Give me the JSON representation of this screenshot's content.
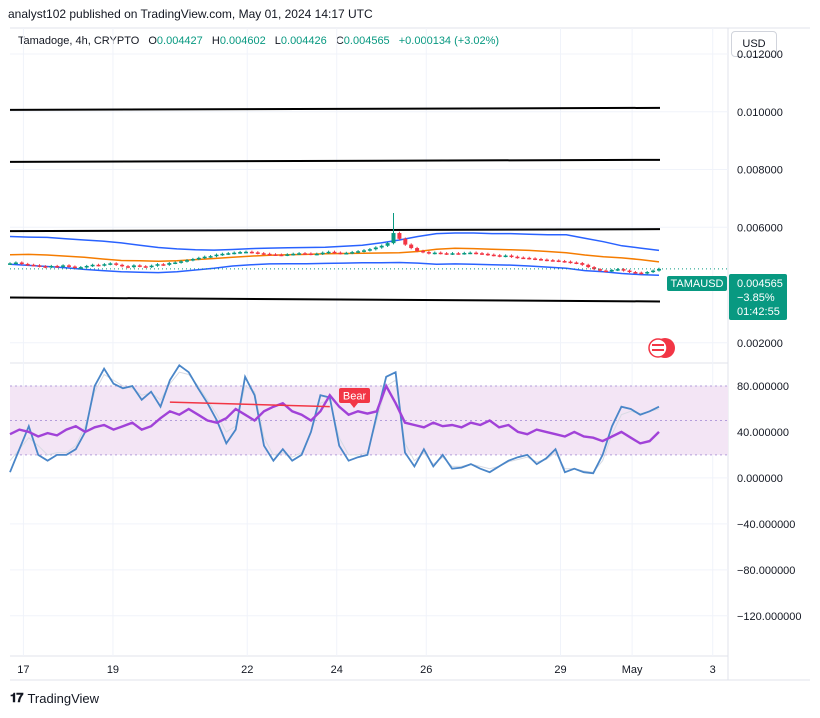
{
  "publisher_line": "analyst102 published on TradingView.com, May 01, 2024 14:17 UTC",
  "legend": {
    "symbol": "Tamadoge, 4h, CRYPTO",
    "open_label": "O",
    "open": "0.004427",
    "high_label": "H",
    "high": "0.004602",
    "low_label": "L",
    "low": "0.004426",
    "close_label": "C",
    "close": "0.004565",
    "change": "+0.000134 (+3.02%)"
  },
  "currency_button": "USD",
  "price_tag": {
    "ticker": "TAMAUSD",
    "price": "0.004565",
    "change_pct": "−3.85%",
    "countdown": "01:42:55"
  },
  "bear_label": "Bear",
  "footer_brand": "TradingView",
  "colors": {
    "up": "#089981",
    "down": "#f23645",
    "bb_band": "#2962ff",
    "bb_basis": "#f57c00",
    "stoch": "#4a86c8",
    "rsi": "#a142d8",
    "rsi_band": "#f3e5f5",
    "line": "#000000"
  },
  "chart_data": [
    {
      "type": "candlestick",
      "title": "Tamadoge, 4h, CRYPTO",
      "ylabel": "USD",
      "ylim": [
        0.0013,
        0.0129
      ],
      "y_ticks": [
        0.012,
        0.01,
        0.008,
        0.006,
        0.002
      ],
      "y_tick_labels": [
        "0.012000",
        "0.010000",
        "0.008000",
        "0.006000",
        "0.002000"
      ],
      "x_ticks": [
        {
          "label": "17",
          "t": 0.3
        },
        {
          "label": "19",
          "t": 2.3
        },
        {
          "label": "22",
          "t": 5.3
        },
        {
          "label": "24",
          "t": 7.3
        },
        {
          "label": "26",
          "t": 9.3
        },
        {
          "label": "29",
          "t": 12.3
        },
        {
          "label": "May",
          "t": 13.9
        },
        {
          "label": "3",
          "t": 15.7
        }
      ],
      "x_range_days": [
        0,
        16
      ],
      "last_candle_t": 14.5,
      "horizontal_lines": [
        0.0101,
        0.0083,
        0.0059,
        0.0035
      ],
      "close_series": [
        0.00475,
        0.00478,
        0.00473,
        0.0047,
        0.00468,
        0.00465,
        0.00462,
        0.00466,
        0.00463,
        0.00468,
        0.00464,
        0.0046,
        0.00462,
        0.00466,
        0.0047,
        0.00468,
        0.00472,
        0.00475,
        0.0047,
        0.00465,
        0.00462,
        0.00468,
        0.00465,
        0.00463,
        0.00467,
        0.00472,
        0.0047,
        0.00476,
        0.00478,
        0.00482,
        0.00486,
        0.0049,
        0.00494,
        0.00498,
        0.005,
        0.00505,
        0.00508,
        0.0051,
        0.00512,
        0.00514,
        0.00515,
        0.00513,
        0.0051,
        0.00508,
        0.00506,
        0.00505,
        0.00504,
        0.00506,
        0.00508,
        0.0051,
        0.00509,
        0.00507,
        0.00508,
        0.00512,
        0.00515,
        0.00512,
        0.0051,
        0.00511,
        0.00514,
        0.00517,
        0.0052,
        0.00524,
        0.0053,
        0.00536,
        0.00545,
        0.0058,
        0.0056,
        0.0054,
        0.00528,
        0.00518,
        0.00514,
        0.0051,
        0.00512,
        0.0051,
        0.00508,
        0.0051,
        0.00509,
        0.00511,
        0.00512,
        0.0051,
        0.00508,
        0.00505,
        0.00503,
        0.005,
        0.00502,
        0.00498,
        0.00495,
        0.00494,
        0.00492,
        0.0049,
        0.00488,
        0.00486,
        0.00485,
        0.00483,
        0.00481,
        0.00478,
        0.00476,
        0.0047,
        0.00462,
        0.00455,
        0.0045,
        0.00448,
        0.00452,
        0.00455,
        0.0045,
        0.00445,
        0.00443,
        0.0044,
        0.00445,
        0.0045,
        0.00456
      ],
      "bb_upper": [
        0.00568,
        0.00566,
        0.00565,
        0.0056,
        0.00556,
        0.00552,
        0.00546,
        0.00538,
        0.0053,
        0.00525,
        0.00522,
        0.00521,
        0.00523,
        0.00526,
        0.00528,
        0.00529,
        0.0053,
        0.00531,
        0.00534,
        0.00538,
        0.00546,
        0.00556,
        0.00568,
        0.00578,
        0.0058,
        0.0058,
        0.00578,
        0.00578,
        0.00576,
        0.00574,
        0.00574,
        0.00562,
        0.0055,
        0.00536,
        0.00528,
        0.0052
      ],
      "bb_basis": [
        0.00505,
        0.00506,
        0.00504,
        0.005,
        0.00496,
        0.0049,
        0.00485,
        0.00484,
        0.00482,
        0.00484,
        0.00488,
        0.00492,
        0.00496,
        0.005,
        0.00503,
        0.00505,
        0.00506,
        0.00508,
        0.00509,
        0.0051,
        0.00511,
        0.00512,
        0.00516,
        0.00524,
        0.00527,
        0.00526,
        0.00524,
        0.00522,
        0.0052,
        0.00516,
        0.00512,
        0.00504,
        0.00498,
        0.00494,
        0.00488,
        0.0048
      ],
      "bb_lower": [
        0.00472,
        0.00468,
        0.00464,
        0.0046,
        0.00454,
        0.0045,
        0.00446,
        0.00444,
        0.00443,
        0.00446,
        0.00452,
        0.00458,
        0.00466,
        0.0047,
        0.00473,
        0.00474,
        0.00474,
        0.00475,
        0.00476,
        0.00477,
        0.00477,
        0.00478,
        0.00476,
        0.00472,
        0.00473,
        0.00472,
        0.0047,
        0.00469,
        0.00466,
        0.00462,
        0.00458,
        0.0045,
        0.00446,
        0.0044,
        0.00436,
        0.00434
      ]
    },
    {
      "type": "line",
      "title": "Stochastic RSI / RSI",
      "ylim": [
        -155,
        100
      ],
      "y_ticks": [
        80,
        40,
        0,
        -40,
        -80,
        -120
      ],
      "y_tick_labels": [
        "80.000000",
        "40.000000",
        "0.000000",
        "−40.000000",
        "−80.000000",
        "−120.000000"
      ],
      "band": [
        20,
        80
      ],
      "midline": 50,
      "series": [
        {
          "name": "stoch_k",
          "values": [
            5,
            25,
            45,
            20,
            15,
            20,
            20,
            25,
            40,
            80,
            95,
            82,
            78,
            80,
            68,
            75,
            62,
            85,
            98,
            92,
            78,
            65,
            50,
            30,
            42,
            88,
            72,
            28,
            15,
            25,
            15,
            20,
            40,
            72,
            70,
            28,
            15,
            18,
            20,
            55,
            88,
            92,
            22,
            10,
            25,
            10,
            20,
            8,
            9,
            12,
            8,
            5,
            10,
            15,
            18,
            20,
            12,
            17,
            25,
            5,
            8,
            5,
            4,
            20,
            45,
            62,
            60,
            55,
            58,
            62
          ]
        },
        {
          "name": "rsi",
          "values": [
            38,
            42,
            40,
            36,
            39,
            37,
            42,
            45,
            40,
            44,
            46,
            42,
            45,
            48,
            42,
            45,
            52,
            58,
            55,
            60,
            55,
            50,
            48,
            52,
            60,
            55,
            50,
            58,
            62,
            65,
            58,
            55,
            50,
            58,
            72,
            62,
            55,
            58,
            56,
            58,
            80,
            65,
            48,
            46,
            44,
            48,
            45,
            46,
            44,
            48,
            46,
            50,
            44,
            46,
            40,
            38,
            42,
            40,
            38,
            36,
            40,
            36,
            35,
            32,
            36,
            40,
            35,
            30,
            32,
            40
          ]
        },
        {
          "name": "stoch_d",
          "values": [
            15,
            25,
            35,
            28,
            20,
            22,
            22,
            28,
            45,
            75,
            90,
            85,
            80,
            78,
            72,
            74,
            68,
            82,
            92,
            90,
            80,
            68,
            55,
            40,
            45,
            80,
            75,
            35,
            20,
            22,
            18,
            22,
            40,
            65,
            68,
            35,
            20,
            20,
            22,
            50,
            80,
            85,
            30,
            15,
            22,
            12,
            18,
            10,
            10,
            12,
            10,
            8,
            10,
            14,
            16,
            18,
            14,
            16,
            22,
            8,
            8,
            6,
            5,
            15,
            38,
            55,
            58,
            56,
            58,
            60
          ]
        }
      ]
    }
  ]
}
